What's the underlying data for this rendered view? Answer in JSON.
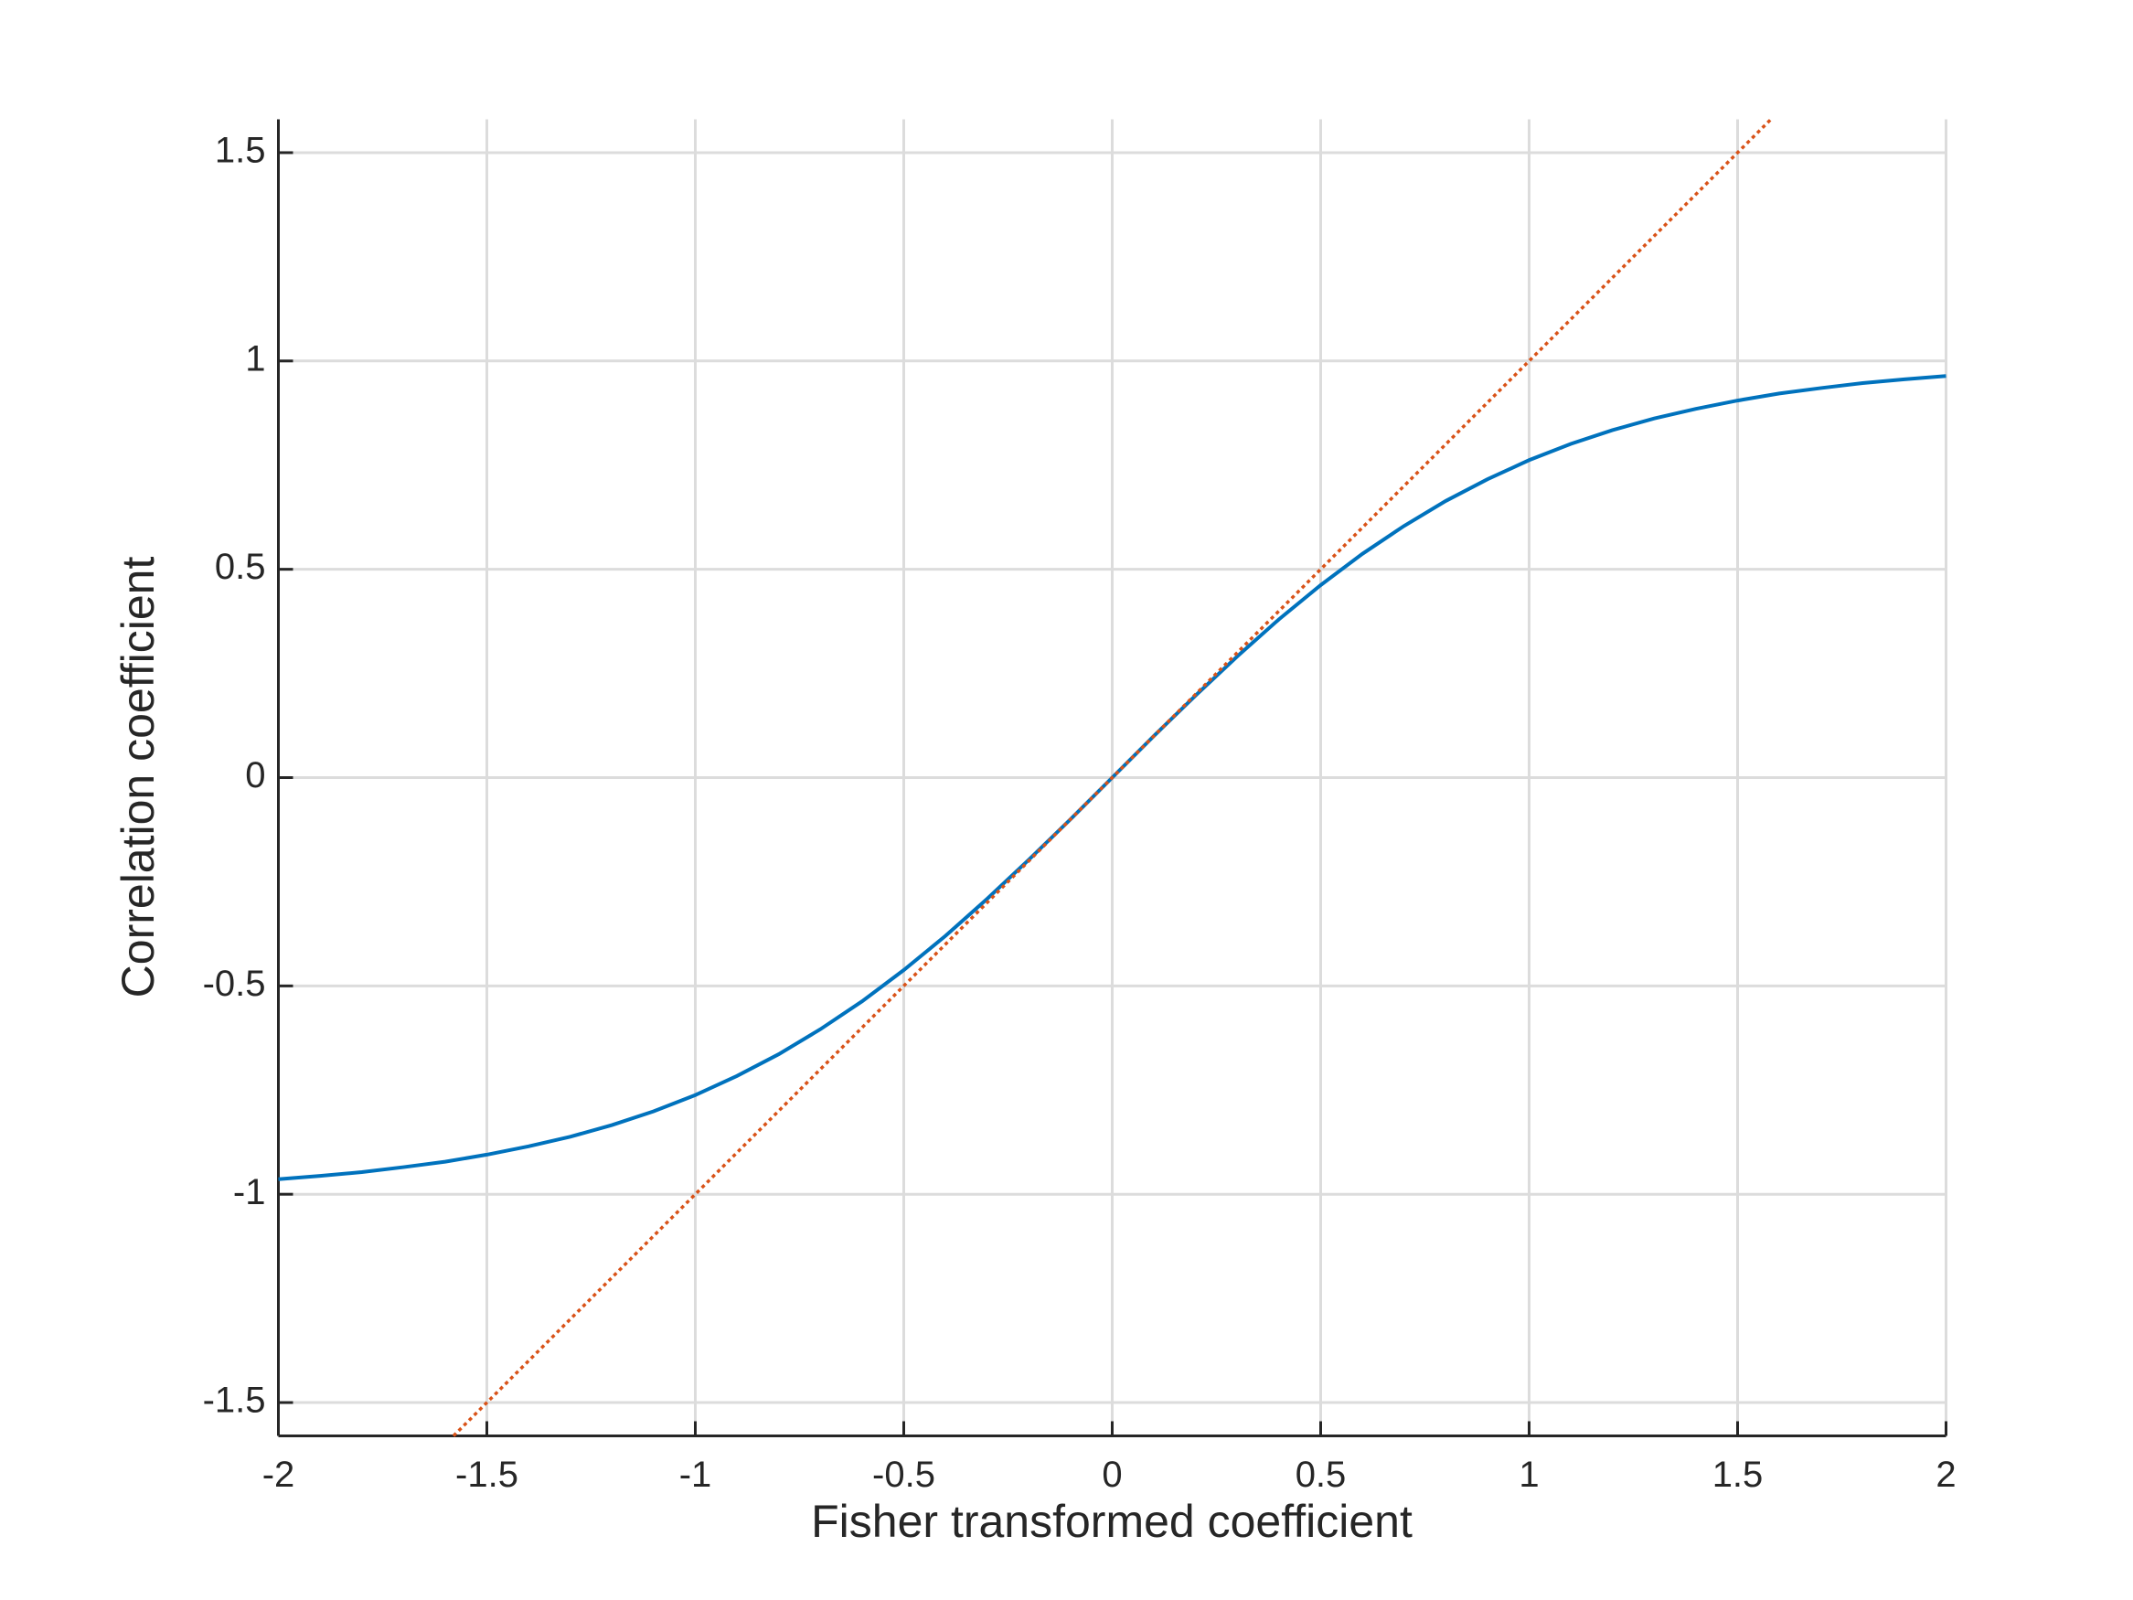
{
  "chart_data": {
    "type": "line",
    "xlabel": "Fisher transformed coefficient",
    "ylabel": "Correlation coefficient",
    "xlim": [
      -2,
      2
    ],
    "ylim": [
      -1.58,
      1.58
    ],
    "xticks": [
      -2,
      -1.5,
      -1,
      -0.5,
      0,
      0.5,
      1,
      1.5,
      2
    ],
    "yticks": [
      -1.5,
      -1,
      -0.5,
      0,
      0.5,
      1,
      1.5
    ],
    "grid": true,
    "series": [
      {
        "color": "#0072bd",
        "style": "solid",
        "x": [
          -2,
          -1.9,
          -1.8,
          -1.7,
          -1.6,
          -1.5,
          -1.4,
          -1.3,
          -1.2,
          -1.1,
          -1,
          -0.9,
          -0.8,
          -0.7,
          -0.6,
          -0.5,
          -0.4,
          -0.3,
          -0.2,
          -0.1,
          0,
          0.1,
          0.2,
          0.3,
          0.4,
          0.5,
          0.6,
          0.7,
          0.8,
          0.9,
          1,
          1.1,
          1.2,
          1.3,
          1.4,
          1.5,
          1.6,
          1.7,
          1.8,
          1.9,
          2
        ],
        "values": [
          -0.964,
          -0.956,
          -0.947,
          -0.935,
          -0.922,
          -0.905,
          -0.885,
          -0.862,
          -0.834,
          -0.801,
          -0.762,
          -0.716,
          -0.664,
          -0.604,
          -0.537,
          -0.462,
          -0.38,
          -0.291,
          -0.197,
          -0.1,
          0,
          0.1,
          0.197,
          0.291,
          0.38,
          0.462,
          0.537,
          0.604,
          0.664,
          0.716,
          0.762,
          0.801,
          0.834,
          0.862,
          0.885,
          0.905,
          0.922,
          0.935,
          0.947,
          0.956,
          0.964
        ]
      },
      {
        "color": "#d95319",
        "style": "dotted",
        "x": [
          -1.58,
          1.58
        ],
        "values": [
          -1.58,
          1.58
        ]
      }
    ]
  }
}
